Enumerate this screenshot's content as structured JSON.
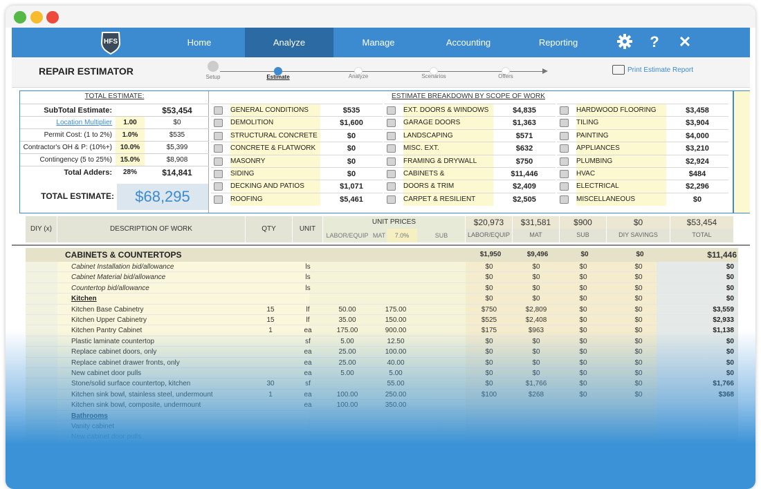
{
  "nav": {
    "logo_text": "HFS",
    "items": [
      "Home",
      "Analyze",
      "Manage",
      "Accounting",
      "Reporting"
    ],
    "active": "Analyze",
    "icons": [
      "gear-icon",
      "help-icon",
      "close-icon"
    ],
    "help_glyph": "?",
    "close_glyph": "✕"
  },
  "subbar": {
    "title": "REPAIR ESTIMATOR",
    "steps": [
      "Setup",
      "Estimate",
      "Analyze",
      "Scenarios",
      "Offers"
    ],
    "active_step": "Estimate",
    "print_label": "Print Estimate Report"
  },
  "summary": {
    "left_header": "TOTAL ESTIMATE:",
    "right_header": "ESTIMATE BREAKDOWN BY SCOPE OF WORK",
    "rows": [
      {
        "label": "SubTotal Estimate:",
        "pct": "",
        "amount": "$53,454"
      },
      {
        "label": "Location Multiplier",
        "pct": "1.00",
        "amount": "$0"
      },
      {
        "label": "Permit Cost: (1 to 2%)",
        "pct": "1.0%",
        "amount": "$535"
      },
      {
        "label": "Contractor's  OH & P: (10%+)",
        "pct": "10.0%",
        "amount": "$5,399"
      },
      {
        "label": "Contingency (5 to 25%)",
        "pct": "15.0%",
        "amount": "$8,908"
      },
      {
        "label": "Total Adders:",
        "pct": "28%",
        "amount": "$14,841"
      }
    ],
    "total_label": "TOTAL ESTIMATE:",
    "total_value": "$68,295",
    "categories": [
      [
        {
          "name": "GENERAL CONDITIONS",
          "value": "$535"
        },
        {
          "name": "DEMOLITION",
          "value": "$1,600"
        },
        {
          "name": "STRUCTURAL CONCRETE",
          "value": "$0"
        },
        {
          "name": "CONCRETE & FLATWORK",
          "value": "$0"
        },
        {
          "name": "MASONRY",
          "value": "$0"
        },
        {
          "name": "SIDING",
          "value": "$0"
        },
        {
          "name": "DECKING AND PATIOS",
          "value": "$1,071"
        },
        {
          "name": "ROOFING",
          "value": "$5,461"
        }
      ],
      [
        {
          "name": "EXT. DOORS & WINDOWS",
          "value": "$4,835"
        },
        {
          "name": "GARAGE DOORS",
          "value": "$1,363"
        },
        {
          "name": "LANDSCAPING",
          "value": "$571"
        },
        {
          "name": "MISC. EXT. IMPROVEMENTS",
          "value": "$632"
        },
        {
          "name": "FRAMING & DRYWALL",
          "value": "$750"
        },
        {
          "name": "CABINETS & COUNTERTOPS",
          "value": "$11,446"
        },
        {
          "name": "DOORS & TRIM",
          "value": "$2,409"
        },
        {
          "name": "CARPET & RESILIENT",
          "value": "$2,505"
        }
      ],
      [
        {
          "name": "HARDWOOD FLOORING",
          "value": "$3,458"
        },
        {
          "name": "TILING",
          "value": "$3,904"
        },
        {
          "name": "PAINTING",
          "value": "$4,000"
        },
        {
          "name": "APPLIANCES",
          "value": "$3,210"
        },
        {
          "name": "PLUMBING",
          "value": "$2,924"
        },
        {
          "name": "HVAC",
          "value": "$484"
        },
        {
          "name": "ELECTRICAL",
          "value": "$2,296"
        },
        {
          "name": "MISCELLANEOUS",
          "value": "$0"
        }
      ]
    ]
  },
  "grid": {
    "headers": {
      "diy": "DIY (x)",
      "desc": "DESCRIPTION OF WORK",
      "qty": "QTY",
      "unit": "UNIT",
      "unit_prices": "UNIT PRICES",
      "labor": "LABOR/EQUIP",
      "mat": "MAT",
      "mat_pct": "7.0%",
      "sub": "SUB",
      "tot_labor": "$20,973",
      "tot_mat": "$31,581",
      "tot_sub": "$900",
      "tot_diy": "$0",
      "tot_total": "$53,454",
      "labor2": "LABOR/EQUIP",
      "mat2": "MAT",
      "sub2": "SUB",
      "diy_savings": "DIY SAVINGS",
      "total": "TOTAL"
    },
    "section": {
      "title": "CABINETS & COUNTERTOPS",
      "labor": "$1,950",
      "mat": "$9,496",
      "sub": "$0",
      "diy": "$0",
      "total": "$11,446"
    },
    "rows": [
      {
        "desc": "Cabinet Installation bid/allowance",
        "qty": "",
        "unit": "ls",
        "lp": "",
        "mp": "",
        "labor": "$0",
        "mat": "$0",
        "sub": "$0",
        "diy": "$0",
        "total": "$0",
        "style": "italic"
      },
      {
        "desc": "Cabinet Material bid/allowance",
        "qty": "",
        "unit": "ls",
        "lp": "",
        "mp": "",
        "labor": "$0",
        "mat": "$0",
        "sub": "$0",
        "diy": "$0",
        "total": "$0",
        "style": "italic"
      },
      {
        "desc": "Countertop bid/allowance",
        "qty": "",
        "unit": "ls",
        "lp": "",
        "mp": "",
        "labor": "$0",
        "mat": "$0",
        "sub": "$0",
        "diy": "$0",
        "total": "$0",
        "style": "italic"
      },
      {
        "desc": "Kitchen",
        "qty": "",
        "unit": "",
        "lp": "",
        "mp": "",
        "labor": "$0",
        "mat": "$0",
        "sub": "$0",
        "diy": "$0",
        "total": "$0",
        "style": "heading"
      },
      {
        "desc": "Kitchen Base Cabinetry",
        "qty": "15",
        "unit": "lf",
        "lp": "50.00",
        "mp": "175.00",
        "labor": "$750",
        "mat": "$2,809",
        "sub": "$0",
        "diy": "$0",
        "total": "$3,559",
        "style": ""
      },
      {
        "desc": "Kitchen Upper Cabinetry",
        "qty": "15",
        "unit": "lf",
        "lp": "35.00",
        "mp": "150.00",
        "labor": "$525",
        "mat": "$2,408",
        "sub": "$0",
        "diy": "$0",
        "total": "$2,933",
        "style": ""
      },
      {
        "desc": "Kitchen Pantry Cabinet",
        "qty": "1",
        "unit": "ea",
        "lp": "175.00",
        "mp": "900.00",
        "labor": "$175",
        "mat": "$963",
        "sub": "$0",
        "diy": "$0",
        "total": "$1,138",
        "style": ""
      },
      {
        "desc": "Plastic laminate countertop",
        "qty": "",
        "unit": "sf",
        "lp": "5.00",
        "mp": "12.50",
        "labor": "$0",
        "mat": "$0",
        "sub": "$0",
        "diy": "$0",
        "total": "$0",
        "style": ""
      },
      {
        "desc": "Replace cabinet doors, only",
        "qty": "",
        "unit": "ea",
        "lp": "25.00",
        "mp": "100.00",
        "labor": "$0",
        "mat": "$0",
        "sub": "$0",
        "diy": "$0",
        "total": "$0",
        "style": ""
      },
      {
        "desc": "Replace cabinet drawer fronts, only",
        "qty": "",
        "unit": "ea",
        "lp": "25.00",
        "mp": "40.00",
        "labor": "$0",
        "mat": "$0",
        "sub": "$0",
        "diy": "$0",
        "total": "$0",
        "style": ""
      },
      {
        "desc": "New cabinet door pulls",
        "qty": "",
        "unit": "ea",
        "lp": "5.00",
        "mp": "5.00",
        "labor": "$0",
        "mat": "$0",
        "sub": "$0",
        "diy": "$0",
        "total": "$0",
        "style": ""
      },
      {
        "desc": "Stone/solid surface countertop, kitchen",
        "qty": "30",
        "unit": "sf",
        "lp": "",
        "mp": "55.00",
        "labor": "$0",
        "mat": "$1,766",
        "sub": "$0",
        "diy": "$0",
        "total": "$1,766",
        "style": ""
      },
      {
        "desc": "Kitchen sink bowl, stainless steel, undermount",
        "qty": "1",
        "unit": "ea",
        "lp": "100.00",
        "mp": "250.00",
        "labor": "$100",
        "mat": "$268",
        "sub": "$0",
        "diy": "$0",
        "total": "$368",
        "style": ""
      },
      {
        "desc": "Kitchen sink bowl, composite, undermount",
        "qty": "",
        "unit": "ea",
        "lp": "100.00",
        "mp": "350.00",
        "labor": "",
        "mat": "",
        "sub": "",
        "diy": "",
        "total": "",
        "style": ""
      },
      {
        "desc": "Bathrooms",
        "qty": "",
        "unit": "",
        "lp": "",
        "mp": "",
        "labor": "",
        "mat": "",
        "sub": "",
        "diy": "",
        "total": "",
        "style": "heading"
      },
      {
        "desc": "Vanity cabinet",
        "qty": "",
        "unit": "",
        "lp": "",
        "mp": "",
        "labor": "",
        "mat": "",
        "sub": "",
        "diy": "",
        "total": "",
        "style": ""
      },
      {
        "desc": "New cabinet door pulls",
        "qty": "",
        "unit": "",
        "lp": "",
        "mp": "",
        "labor": "",
        "mat": "",
        "sub": "",
        "diy": "",
        "total": "",
        "style": ""
      }
    ]
  }
}
